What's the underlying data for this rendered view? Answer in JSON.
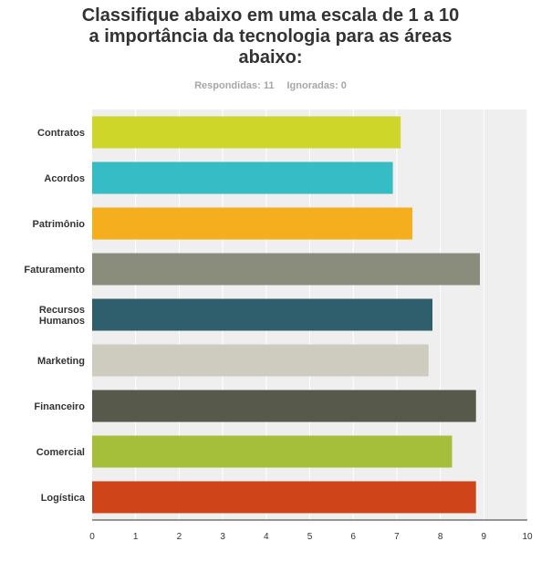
{
  "header": {
    "title_line1": "Classifique abaixo em uma escala de 1 a 10",
    "title_line2": "a importância da tecnologia para as áreas",
    "title_line3": "abaixo:",
    "answered": "Respondidas: 11",
    "skipped": "Ignoradas: 0"
  },
  "chart_data": {
    "type": "bar",
    "orientation": "horizontal",
    "categories": [
      "Contratos",
      "Acordos",
      "Patrimônio",
      "Faturamento",
      "Recursos Humanos",
      "Marketing",
      "Financeiro",
      "Comercial",
      "Logística"
    ],
    "values": [
      7.09,
      6.91,
      7.36,
      8.91,
      7.82,
      7.73,
      8.82,
      8.27,
      8.82
    ],
    "colors": [
      "#cdd629",
      "#36bcc4",
      "#f5ae1d",
      "#8a8c7c",
      "#2f5f6c",
      "#cecbbf",
      "#575a4a",
      "#a6bf3a",
      "#cf4419"
    ],
    "xlim": [
      0,
      10
    ],
    "xticks": [
      "0",
      "1",
      "2",
      "3",
      "4",
      "5",
      "6",
      "7",
      "8",
      "9",
      "10"
    ],
    "grid": true,
    "legend": "none"
  }
}
